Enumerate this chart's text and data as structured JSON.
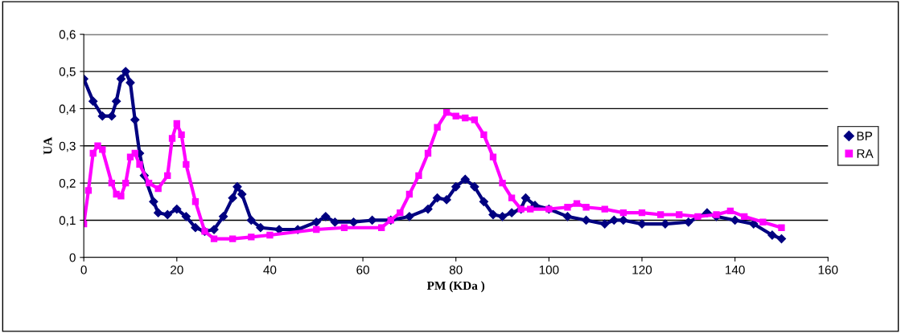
{
  "chart_data": {
    "type": "line",
    "xlabel": "PM (KDa )",
    "ylabel": "UA",
    "xlim": [
      0,
      160
    ],
    "xticks": [
      0,
      20,
      40,
      60,
      80,
      100,
      120,
      140,
      160
    ],
    "ylim": [
      0,
      0.6
    ],
    "yticks": [
      {
        "value": 0,
        "label": "0"
      },
      {
        "value": 0.1,
        "label": "0,1"
      },
      {
        "value": 0.2,
        "label": "0,2"
      },
      {
        "value": 0.3,
        "label": "0,3"
      },
      {
        "value": 0.4,
        "label": "0,4"
      },
      {
        "value": 0.5,
        "label": "0,5"
      },
      {
        "value": 0.6,
        "label": "0,6"
      }
    ],
    "grid": "y",
    "legend": "right",
    "series": [
      {
        "name": "BP",
        "color": "#000080",
        "marker": "diamond",
        "x": [
          0,
          2,
          4,
          6,
          7,
          8,
          9,
          10,
          11,
          12,
          13,
          15,
          16,
          18,
          20,
          22,
          24,
          26,
          28,
          30,
          32,
          33,
          34,
          36,
          38,
          42,
          46,
          50,
          52,
          54,
          58,
          62,
          66,
          70,
          74,
          76,
          78,
          80,
          82,
          84,
          86,
          88,
          90,
          92,
          94,
          95,
          97,
          100,
          104,
          108,
          112,
          114,
          116,
          120,
          125,
          130,
          134,
          136,
          140,
          144,
          148,
          150
        ],
        "values": [
          0.48,
          0.42,
          0.38,
          0.38,
          0.42,
          0.48,
          0.5,
          0.47,
          0.37,
          0.28,
          0.22,
          0.15,
          0.12,
          0.115,
          0.13,
          0.11,
          0.08,
          0.07,
          0.075,
          0.11,
          0.16,
          0.19,
          0.17,
          0.1,
          0.08,
          0.075,
          0.075,
          0.095,
          0.11,
          0.095,
          0.095,
          0.1,
          0.1,
          0.11,
          0.13,
          0.16,
          0.155,
          0.19,
          0.21,
          0.19,
          0.15,
          0.115,
          0.11,
          0.12,
          0.13,
          0.16,
          0.14,
          0.13,
          0.11,
          0.1,
          0.09,
          0.1,
          0.1,
          0.09,
          0.09,
          0.095,
          0.12,
          0.11,
          0.1,
          0.09,
          0.06,
          0.05
        ]
      },
      {
        "name": "RA",
        "color": "#ff00ff",
        "marker": "square",
        "x": [
          0,
          1,
          2,
          3,
          4,
          6,
          7,
          8,
          9,
          10,
          11,
          12,
          14,
          16,
          18,
          19,
          20,
          21,
          22,
          24,
          26,
          28,
          32,
          36,
          40,
          50,
          56,
          64,
          66,
          68,
          70,
          72,
          74,
          76,
          78,
          80,
          82,
          84,
          86,
          88,
          90,
          92,
          94,
          96,
          100,
          104,
          106,
          108,
          112,
          116,
          120,
          124,
          128,
          132,
          136,
          139,
          142,
          146,
          150
        ],
        "values": [
          0.09,
          0.18,
          0.28,
          0.3,
          0.29,
          0.2,
          0.17,
          0.165,
          0.2,
          0.27,
          0.28,
          0.25,
          0.2,
          0.185,
          0.22,
          0.32,
          0.36,
          0.33,
          0.25,
          0.15,
          0.07,
          0.05,
          0.05,
          0.055,
          0.06,
          0.075,
          0.08,
          0.08,
          0.1,
          0.12,
          0.17,
          0.22,
          0.28,
          0.35,
          0.39,
          0.38,
          0.375,
          0.37,
          0.33,
          0.27,
          0.2,
          0.16,
          0.13,
          0.13,
          0.13,
          0.135,
          0.145,
          0.135,
          0.13,
          0.12,
          0.12,
          0.115,
          0.115,
          0.11,
          0.115,
          0.125,
          0.11,
          0.095,
          0.08
        ]
      }
    ]
  }
}
